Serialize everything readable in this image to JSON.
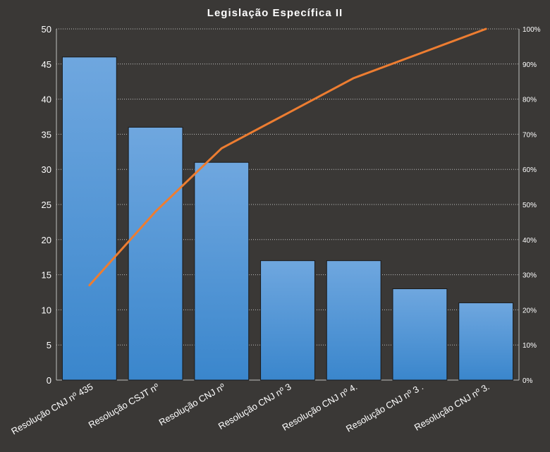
{
  "chart_data": {
    "type": "bar",
    "title": "Legislação Específica II",
    "categories": [
      "Resolução CNJ nº 435",
      "Resolução CSJT nº",
      "Resolução CNJ nº",
      "Resolução CNJ nº 3",
      "Resolução CNJ nº 4.",
      "Resolução CNJ nº 3 .",
      "Resolução CNJ nº 3."
    ],
    "series": [
      {
        "type": "bar",
        "values": [
          46,
          36,
          31,
          17,
          17,
          13,
          11
        ]
      },
      {
        "type": "line",
        "axis": "right",
        "values": [
          27,
          48,
          66,
          76,
          86,
          93,
          100
        ]
      }
    ],
    "ylim": [
      0,
      50
    ],
    "yticks": [
      "0",
      "5",
      "10",
      "15",
      "20",
      "25",
      "30",
      "35",
      "40",
      "45",
      "50"
    ],
    "y2lim": [
      0,
      100
    ],
    "y2ticks": [
      "0%",
      "10%",
      "20%",
      "30%",
      "40%",
      "50%",
      "60%",
      "70%",
      "80%",
      "90%",
      "100%"
    ],
    "xlabel": "",
    "ylabel": "",
    "grid": true,
    "colors": {
      "bar_top": "#6fa7df",
      "bar_bottom": "#3a86cc",
      "line": "#ed7d31",
      "background": "#3a3836",
      "grid": "#bfbfbf",
      "text": "#ffffff"
    }
  }
}
